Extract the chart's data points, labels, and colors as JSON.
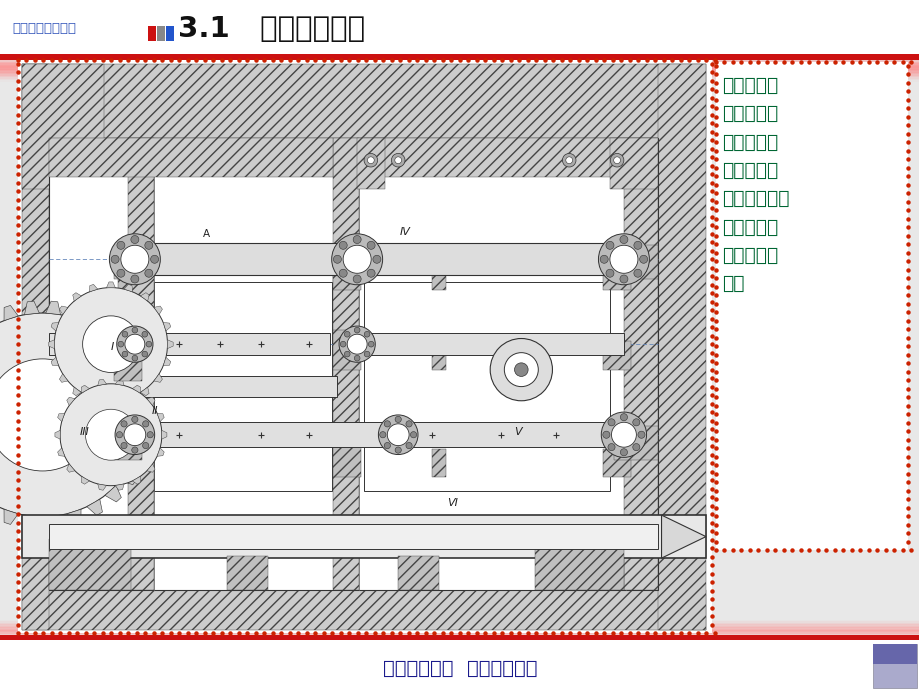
{
  "bg_color": "#e8e8e8",
  "header_bg": "#ffffff",
  "title_small": "机械制造装备设计",
  "title_small_color": "#3355bb",
  "title_large": "3.1   主轴部件设计",
  "title_large_color": "#111111",
  "red_bar_color": "#cc1111",
  "pink_bar_color": "#f0a0a0",
  "footer_text": "大连理工大学  机械工程学院",
  "footer_color": "#1a1a8c",
  "content_text": "主轴部件是\n机床的执行\n件，由主轴\n及其支承轴\n承、传动件、\n密封件及定\n位元件等组\n成。",
  "content_color": "#006633",
  "dot_color": "#cc2200",
  "diagram_bg": "#ffffff",
  "hatch_color": "#cccccc",
  "line_color": "#333333",
  "centerline_color": "#5577cc",
  "label_color": "#222222",
  "block_colors": [
    "#cc1111",
    "#888888",
    "#2255cc"
  ],
  "footer_icon_color": "#9999bb"
}
